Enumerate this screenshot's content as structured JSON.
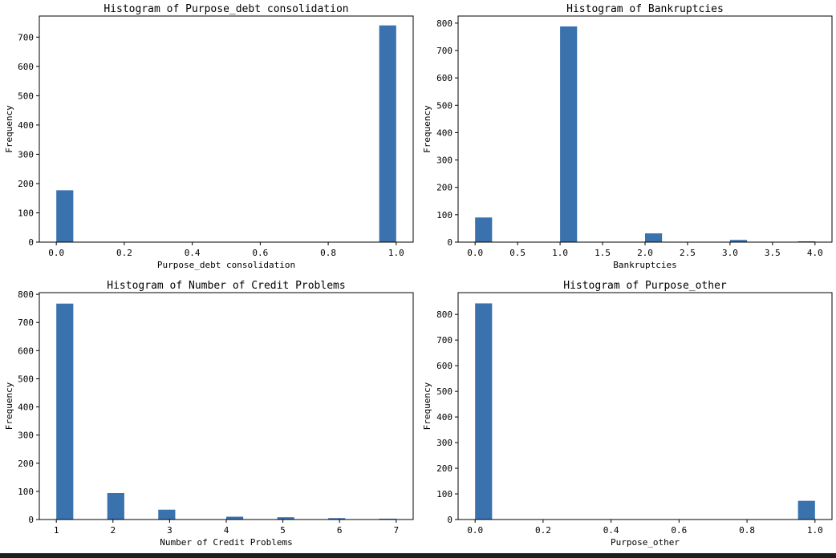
{
  "colors": {
    "bar": "#3a72ae",
    "axis": "#000000",
    "background": "#ffffff",
    "bottom_strip": "#1e1e1e"
  },
  "chart_data": [
    {
      "type": "bar",
      "title": "Histogram of Purpose_debt consolidation",
      "xlabel": "Purpose_debt consolidation",
      "ylabel": "Frequency",
      "xlim": [
        -0.05,
        1.05
      ],
      "ylim": [
        0,
        772
      ],
      "xticks": [
        0.0,
        0.2,
        0.4,
        0.6,
        0.8,
        1.0
      ],
      "xtick_labels": [
        "0.0",
        "0.2",
        "0.4",
        "0.6",
        "0.8",
        "1.0"
      ],
      "yticks": [
        0,
        100,
        200,
        300,
        400,
        500,
        600,
        700
      ],
      "ytick_labels": [
        "0",
        "100",
        "200",
        "300",
        "400",
        "500",
        "600",
        "700"
      ],
      "bins": [
        {
          "x0": 0.0,
          "x1": 0.05,
          "value": 177
        },
        {
          "x0": 0.95,
          "x1": 1.0,
          "value": 740
        }
      ]
    },
    {
      "type": "bar",
      "title": "Histogram of Bankruptcies",
      "xlabel": "Bankruptcies",
      "ylabel": "Frequency",
      "xlim": [
        -0.2,
        4.2
      ],
      "ylim": [
        0,
        826
      ],
      "xticks": [
        0.0,
        0.5,
        1.0,
        1.5,
        2.0,
        2.5,
        3.0,
        3.5,
        4.0
      ],
      "xtick_labels": [
        "0.0",
        "0.5",
        "1.0",
        "1.5",
        "2.0",
        "2.5",
        "3.0",
        "3.5",
        "4.0"
      ],
      "yticks": [
        0,
        100,
        200,
        300,
        400,
        500,
        600,
        700,
        800
      ],
      "ytick_labels": [
        "0",
        "100",
        "200",
        "300",
        "400",
        "500",
        "600",
        "700",
        "800"
      ],
      "bins": [
        {
          "x0": 0.0,
          "x1": 0.2,
          "value": 90
        },
        {
          "x0": 1.0,
          "x1": 1.2,
          "value": 788
        },
        {
          "x0": 2.0,
          "x1": 2.2,
          "value": 32
        },
        {
          "x0": 3.0,
          "x1": 3.2,
          "value": 8
        },
        {
          "x0": 3.8,
          "x1": 4.0,
          "value": 3
        }
      ]
    },
    {
      "type": "bar",
      "title": "Histogram of Number of Credit Problems",
      "xlabel": "Number of Credit Problems",
      "ylabel": "Frequency",
      "xlim": [
        0.7,
        7.3
      ],
      "ylim": [
        0,
        806
      ],
      "xticks": [
        1,
        2,
        3,
        4,
        5,
        6,
        7
      ],
      "xtick_labels": [
        "1",
        "2",
        "3",
        "4",
        "5",
        "6",
        "7"
      ],
      "yticks": [
        0,
        100,
        200,
        300,
        400,
        500,
        600,
        700,
        800
      ],
      "ytick_labels": [
        "0",
        "100",
        "200",
        "300",
        "400",
        "500",
        "600",
        "700",
        "800"
      ],
      "bins": [
        {
          "x0": 1.0,
          "x1": 1.3,
          "value": 767
        },
        {
          "x0": 1.9,
          "x1": 2.2,
          "value": 94
        },
        {
          "x0": 2.8,
          "x1": 3.1,
          "value": 35
        },
        {
          "x0": 4.0,
          "x1": 4.3,
          "value": 10
        },
        {
          "x0": 4.9,
          "x1": 5.2,
          "value": 8
        },
        {
          "x0": 5.8,
          "x1": 6.1,
          "value": 5
        },
        {
          "x0": 6.7,
          "x1": 7.0,
          "value": 3
        }
      ]
    },
    {
      "type": "bar",
      "title": "Histogram of Purpose_other",
      "xlabel": "Purpose_other",
      "ylabel": "Frequency",
      "xlim": [
        -0.05,
        1.05
      ],
      "ylim": [
        0,
        885
      ],
      "xticks": [
        0.0,
        0.2,
        0.4,
        0.6,
        0.8,
        1.0
      ],
      "xtick_labels": [
        "0.0",
        "0.2",
        "0.4",
        "0.6",
        "0.8",
        "1.0"
      ],
      "yticks": [
        0,
        100,
        200,
        300,
        400,
        500,
        600,
        700,
        800
      ],
      "ytick_labels": [
        "0",
        "100",
        "200",
        "300",
        "400",
        "500",
        "600",
        "700",
        "800"
      ],
      "bins": [
        {
          "x0": 0.0,
          "x1": 0.05,
          "value": 843
        },
        {
          "x0": 0.95,
          "x1": 1.0,
          "value": 73
        }
      ]
    }
  ]
}
